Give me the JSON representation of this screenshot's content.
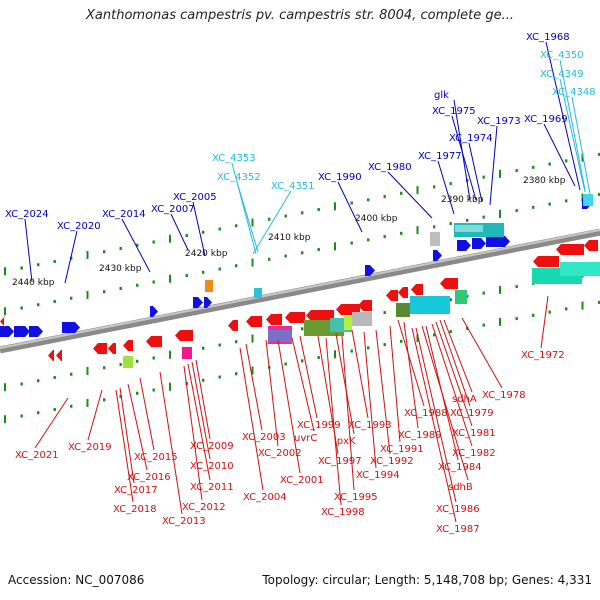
{
  "title": "Xanthomonas campestris pv. campestris str. 8004, complete ge...",
  "footer": {
    "accession_text": "Accession: NC_007086",
    "topology_text": "Topology: circular; Length: 5,148,708 bp; Genes: 4,331"
  },
  "colors": {
    "forward_label": "#0000b8",
    "forward_label_alt": "#22bbdd",
    "reverse_label": "#d01010",
    "axis": "#777777",
    "tick": "#1e8a1e"
  },
  "ruler_labels": [
    "2380 kbp",
    "2390 kbp",
    "2400 kbp",
    "2410 kbp",
    "2420 kbp",
    "2430 kbp",
    "2440 kbp"
  ],
  "forward_labels": [
    "XC_1968",
    "XC_4350",
    "XC_4349",
    "XC_4348",
    "glk",
    "XC_1975",
    "XC_1973",
    "XC_1969",
    "XC_1974",
    "XC_1977",
    "XC_4353",
    "XC_1980",
    "XC_4352",
    "XC_1990",
    "XC_4351",
    "XC_2005",
    "XC_2007",
    "XC_2024",
    "XC_2014",
    "XC_2020"
  ],
  "reverse_labels": [
    "XC_1972",
    "XC_1978",
    "sdhA",
    "XC_1979",
    "XC_1988",
    "XC_1981",
    "XC_1993",
    "XC_1999",
    "uvrC",
    "XC_2003",
    "XC_1989",
    "XC_1991",
    "lpxK",
    "XC_1982",
    "XC_1997",
    "XC_1992",
    "XC_2009",
    "XC_2002",
    "XC_1984",
    "XC_1994",
    "XC_2015",
    "XC_2010",
    "XC_2001",
    "sdhB",
    "XC_2019",
    "XC_2021",
    "XC_2016",
    "XC_2011",
    "XC_1995",
    "XC_2017",
    "XC_2004",
    "XC_2012",
    "XC_1986",
    "XC_2018",
    "XC_1998",
    "XC_2013",
    "XC_1987"
  ]
}
